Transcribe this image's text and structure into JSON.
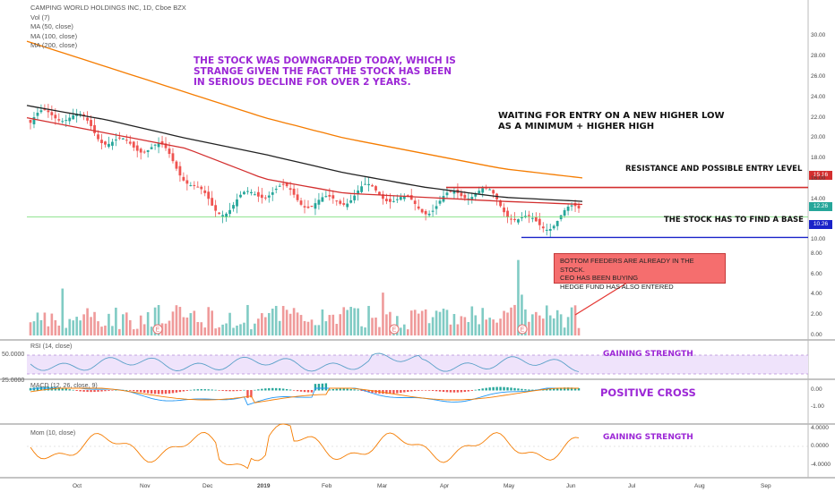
{
  "header": {
    "symbol_line": "CAMPING WORLD HOLDINGS INC, 1D, Cboe BZX",
    "indicators": [
      "Vol (7)",
      "MA (50, close)",
      "MA (100, close)",
      "MA (200, close)"
    ]
  },
  "annotations": {
    "downgrade": [
      "THE STOCK WAS DOWNGRADED TODAY, WHICH IS",
      "STRANGE GIVEN THE FACT THE STOCK HAS BEEN",
      "IN SERIOUS DECLINE FOR OVER 2 YEARS."
    ],
    "waiting": [
      "WAITING FOR ENTRY ON A NEW HIGHER LOW",
      "AS A MINIMUM + HIGHER HIGH"
    ],
    "resistance": "RESISTANCE AND POSSIBLE ENTRY LEVEL",
    "base": "THE STOCK HAS TO FIND  A BASE",
    "bubble": [
      "BOTTOM FEEDERS ARE ALREADY IN THE STOCK.",
      "CEO HAS BEEN BUYING",
      "HEDGE FUND HAS ALSO ENTERED"
    ],
    "rsi_note": "GAINING STRENGTH",
    "macd_note": "POSITIVE CROSS",
    "mom_note": "GAINING STRENGTH"
  },
  "panes": {
    "rsi_title": "RSI (14, close)",
    "macd_title": "MACD (12, 26, close, 9)",
    "mom_title": "Mom (10, close)",
    "rsi_ticks": [
      "50.0000",
      "25.0000"
    ],
    "macd_ticks": [
      "0.00",
      "-1.00"
    ],
    "mom_ticks": [
      "4.0000",
      "0.0000",
      "-4.0000"
    ]
  },
  "price_tags": {
    "resistance": "15.16",
    "current": "12.26",
    "base": "10.26"
  },
  "colors": {
    "up": "#26a69a",
    "down": "#ef5350",
    "ma50": "#d32f2f",
    "ma100": "#222222",
    "ma200": "#f57c00",
    "annotation_purple": "#9c27d6",
    "resistance_line": "#d32f2f",
    "base_line": "#1a23c9",
    "rsi_band": "#efe3fb",
    "mom_line": "#f57c00"
  },
  "chart_data": {
    "type": "candlestick",
    "title": "CAMPING WORLD HOLDINGS INC, 1D, Cboe BZX",
    "y_ticks": [
      "30.00",
      "28.00",
      "26.00",
      "24.00",
      "22.00",
      "20.00",
      "18.00",
      "16.00",
      "14.00",
      "10.00",
      "8.00",
      "6.00",
      "4.00",
      "2.00",
      "0.00"
    ],
    "x_ticks": [
      "Oct",
      "Nov",
      "Dec",
      "2019",
      "Feb",
      "Mar",
      "Apr",
      "May",
      "Jun",
      "Jul",
      "Aug",
      "Sep"
    ],
    "price_range": [
      10,
      30
    ],
    "price_path": [
      {
        "month": "Sep-2018",
        "price": 21.5
      },
      {
        "month": "Oct-2018",
        "price": 21.5
      },
      {
        "month": "Nov-2018",
        "price": 18.5
      },
      {
        "month": "Dec-2018",
        "price": 14.0
      },
      {
        "month": "Jan-2019",
        "price": 14.0
      },
      {
        "month": "Feb-2019",
        "price": 14.6
      },
      {
        "month": "Mar-2019",
        "price": 13.6
      },
      {
        "month": "Apr-2019",
        "price": 14.6
      },
      {
        "month": "May-2019",
        "price": 12.5
      },
      {
        "month": "Jun-2019",
        "price": 12.3
      }
    ],
    "ma50_path": [
      22.0,
      20.5,
      19.0,
      16.0,
      14.6,
      14.2,
      13.8,
      13.5
    ],
    "ma100_path": [
      23.2,
      21.8,
      20.0,
      18.4,
      16.6,
      15.2,
      14.2,
      13.8
    ],
    "ma200_path": [
      29.5,
      27.0,
      24.5,
      22.0,
      20.0,
      18.5,
      17.0,
      16.1
    ],
    "levels": [
      {
        "name": "resistance",
        "value": 15.16
      },
      {
        "name": "current",
        "value": 12.26
      },
      {
        "name": "base",
        "value": 10.26
      }
    ],
    "events": [
      "E",
      "E",
      "E",
      "E"
    ]
  }
}
